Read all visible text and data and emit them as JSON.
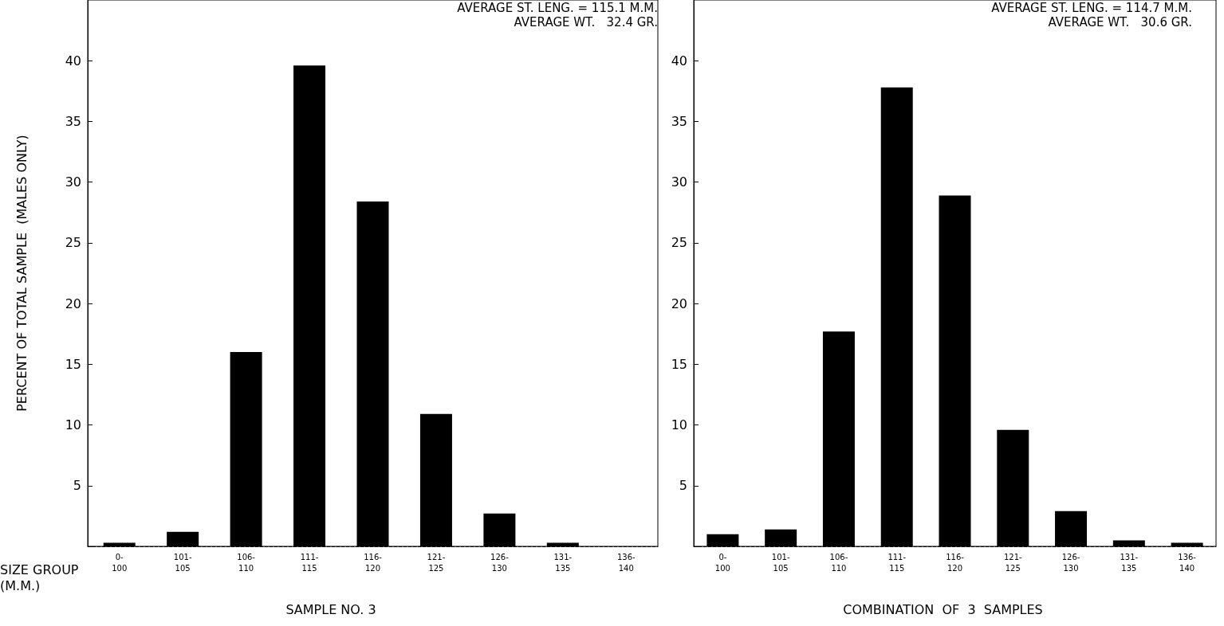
{
  "chart_data": [
    {
      "type": "bar",
      "title": "SAMPLE NO. 3",
      "xlabel": "SIZE GROUP\n(M.M.)",
      "ylabel": "PERCENT OF TOTAL SAMPLE  (MALES ONLY)",
      "annotations": [
        "AVERAGE ST. LENG. = 115.1 M.M.",
        "AVERAGE WT.   32.4 GR."
      ],
      "categories": [
        "0-\n100",
        "101-\n105",
        "106-\n110",
        "111-\n115",
        "116-\n120",
        "121-\n125",
        "126-\n130",
        "131-\n135",
        "136-\n140"
      ],
      "values": [
        0.3,
        1.2,
        16.0,
        39.6,
        28.4,
        10.9,
        2.7,
        0.3,
        0
      ],
      "color": "#000000",
      "ylim": [
        0,
        45
      ],
      "yticks": [
        {
          "value": 0,
          "label": null
        },
        5,
        10,
        15,
        20,
        25,
        30,
        35,
        40
      ],
      "grid": false
    },
    {
      "type": "bar",
      "title": "COMBINATION  OF  3  SAMPLES",
      "annotations": [
        "AVERAGE ST. LENG. = 114.7 M.M.",
        "AVERAGE WT.   30.6 GR."
      ],
      "categories": [
        "0-\n100",
        "101-\n105",
        "106-\n110",
        "111-\n115",
        "116-\n120",
        "121-\n125",
        "126-\n130",
        "131-\n135",
        "136-\n140"
      ],
      "values": [
        1.0,
        1.4,
        17.7,
        37.8,
        28.9,
        9.6,
        2.9,
        0.5,
        0.3
      ],
      "color": "#000000",
      "ylim": [
        0,
        45
      ],
      "yticks": [
        {
          "value": 0,
          "label": null
        },
        5,
        10,
        15,
        20,
        25,
        30,
        35,
        40
      ],
      "grid": false
    }
  ]
}
